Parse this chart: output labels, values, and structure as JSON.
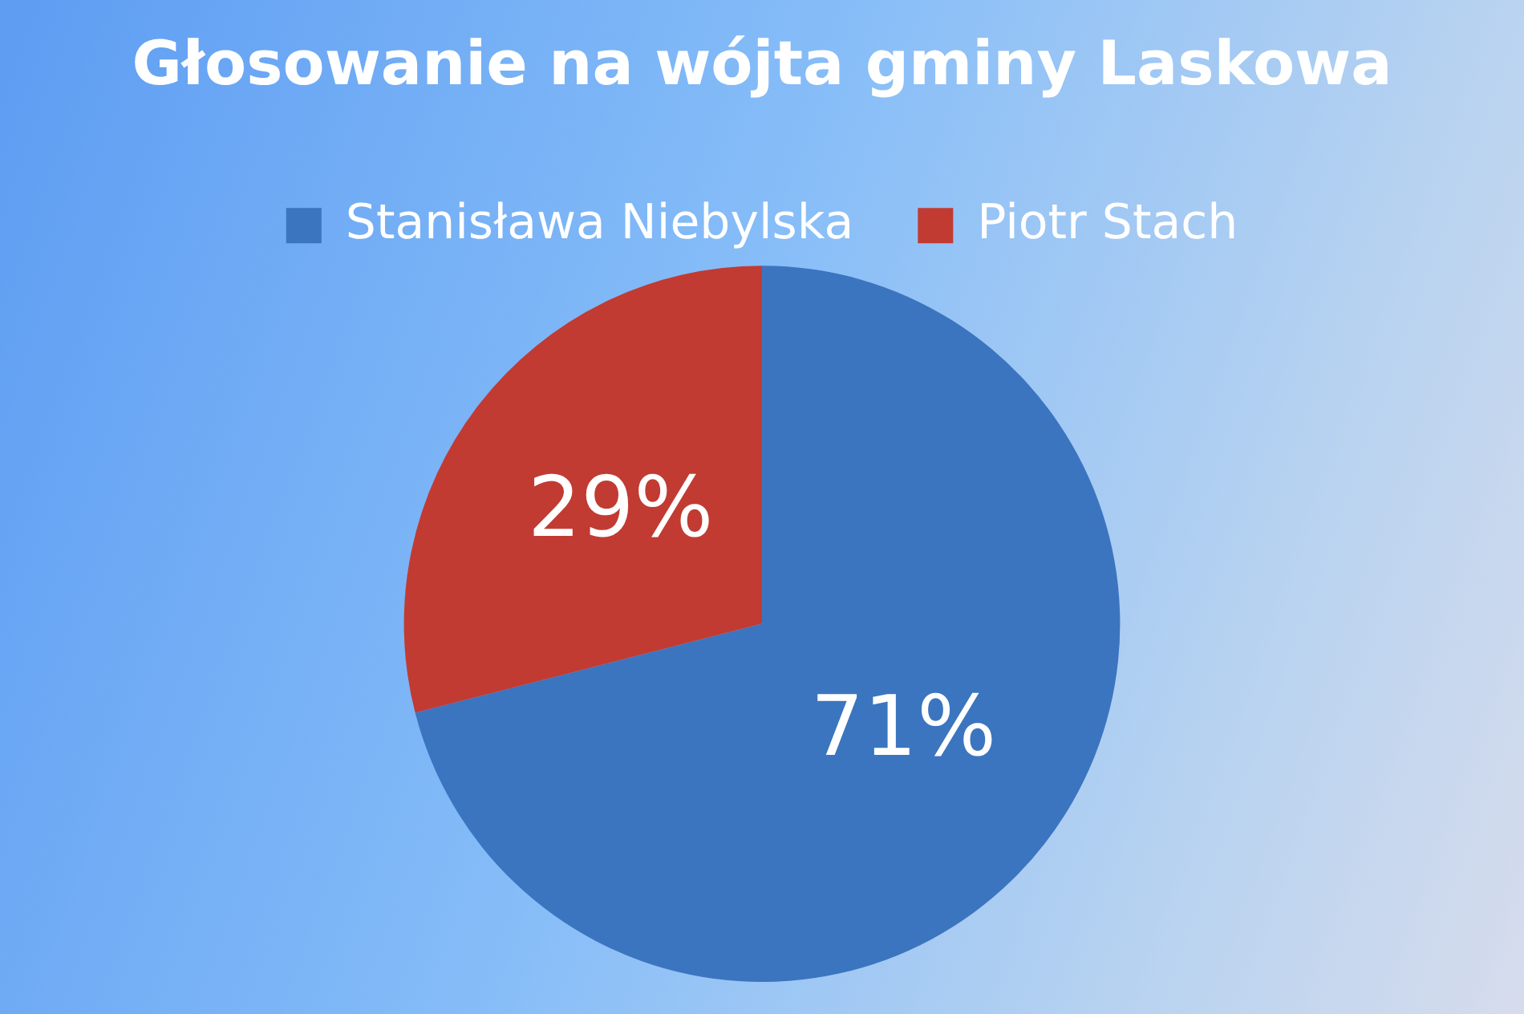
{
  "chart_data": {
    "type": "pie",
    "title": "Głosowanie na wójta gminy Laskowa",
    "categories": [
      "Stanisława Niebylska",
      "Piotr Stach"
    ],
    "values": [
      71,
      29
    ],
    "colors": [
      "#3b74bf",
      "#c23b33"
    ],
    "value_labels": [
      "71%",
      "29%"
    ],
    "legend": "top"
  }
}
